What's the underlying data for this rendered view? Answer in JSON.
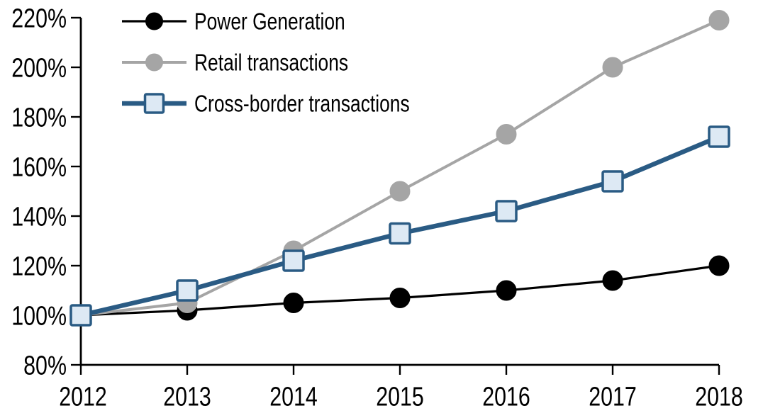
{
  "chart_data": {
    "type": "line",
    "title": "",
    "x_categories": [
      "2012",
      "2013",
      "2014",
      "2015",
      "2016",
      "2017",
      "2018"
    ],
    "y_axis": {
      "min": 80,
      "max": 220,
      "step": 20,
      "tick_suffix": "%"
    },
    "series": [
      {
        "name": "Power Generation",
        "values": [
          100,
          102,
          105,
          107,
          110,
          114,
          120
        ],
        "color": "#000000",
        "marker": "circle",
        "marker_fill": "#000000",
        "line_width": 3.2
      },
      {
        "name": "Retail transactions",
        "values": [
          100,
          105,
          126,
          150,
          173,
          200,
          219
        ],
        "color": "#A5A5A5",
        "marker": "circle",
        "marker_fill": "#A5A5A5",
        "line_width": 4
      },
      {
        "name": "Cross-border transactions",
        "values": [
          100,
          110,
          122,
          133,
          142,
          154,
          172
        ],
        "color": "#2A5B84",
        "marker": "square",
        "marker_fill": "#DDE9F4",
        "line_width": 6.5
      }
    ],
    "legend": {
      "position": "top-left-inside",
      "entries": [
        "Power Generation",
        "Retail transactions",
        "Cross-border transactions"
      ]
    },
    "grid": false,
    "background": "#FFFFFF",
    "axis_color": "#000000",
    "xlabel": "",
    "ylabel": ""
  }
}
